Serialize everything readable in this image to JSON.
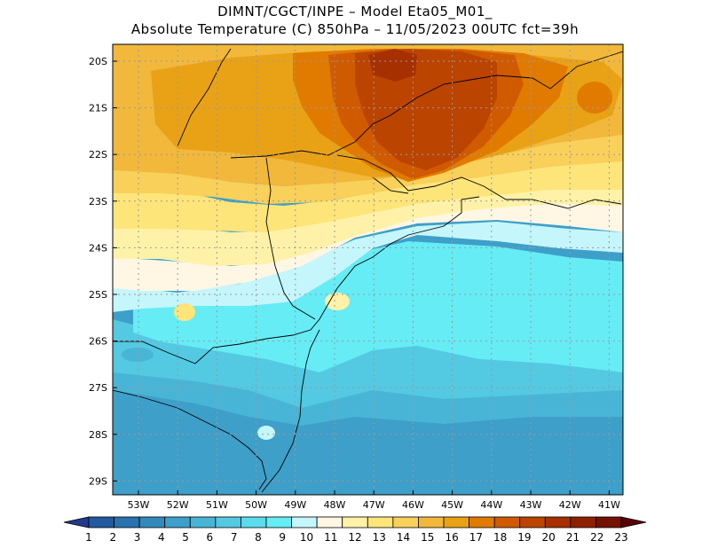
{
  "title": {
    "line1": "DIMNT/CGCT/INPE –  Model Eta05_M01_",
    "line2": "Absolute Temperature (C) 850hPa –  11/05/2023 00UTC fct=39h"
  },
  "axes": {
    "lat_labels": [
      "20S",
      "21S",
      "22S",
      "23S",
      "24S",
      "25S",
      "26S",
      "27S",
      "28S",
      "29S"
    ],
    "lon_labels": [
      "53W",
      "52W",
      "51W",
      "50W",
      "49W",
      "48W",
      "47W",
      "46W",
      "45W",
      "44W",
      "43W",
      "42W",
      "41W"
    ]
  },
  "colorbar": {
    "labels": [
      "1",
      "2",
      "3",
      "4",
      "5",
      "6",
      "7",
      "8",
      "9",
      "10",
      "11",
      "12",
      "13",
      "14",
      "15",
      "16",
      "17",
      "18",
      "19",
      "20",
      "21",
      "22",
      "23"
    ],
    "colors": [
      "#1f3b8f",
      "#23599e",
      "#2a72ad",
      "#3489bc",
      "#3e9fc9",
      "#49b5d6",
      "#53c9e2",
      "#5bdcec",
      "#66ecf5",
      "#c4f6fb",
      "#fff7e4",
      "#fff2a8",
      "#fde57a",
      "#f8d05a",
      "#f1b83c",
      "#e9a216",
      "#e07b00",
      "#d05a00",
      "#bb4400",
      "#a63000",
      "#8d2000",
      "#731200",
      "#5a0008"
    ]
  },
  "map": {
    "frame_color": "#000000",
    "grid_color": "#9a9a9a"
  }
}
